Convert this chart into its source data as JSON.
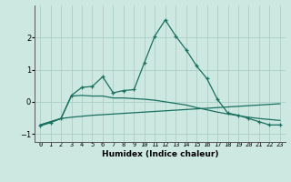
{
  "xlabel": "Humidex (Indice chaleur)",
  "background_color": "#cce8e0",
  "grid_color": "#aad0c8",
  "line_color": "#1a7060",
  "x_values": [
    0,
    1,
    2,
    3,
    4,
    5,
    6,
    7,
    8,
    9,
    10,
    11,
    12,
    13,
    14,
    15,
    16,
    17,
    18,
    19,
    20,
    21,
    22,
    23
  ],
  "series1": [
    -0.75,
    -0.65,
    -0.52,
    0.2,
    0.45,
    0.48,
    0.78,
    0.28,
    0.35,
    0.38,
    1.22,
    2.05,
    2.55,
    2.05,
    1.62,
    1.12,
    0.72,
    0.08,
    -0.35,
    -0.42,
    -0.52,
    -0.62,
    -0.72,
    -0.72
  ],
  "series2": [
    -0.72,
    -0.62,
    -0.52,
    0.18,
    0.2,
    0.18,
    0.18,
    0.12,
    0.12,
    0.1,
    0.08,
    0.05,
    0.0,
    -0.05,
    -0.1,
    -0.18,
    -0.25,
    -0.32,
    -0.38,
    -0.43,
    -0.48,
    -0.52,
    -0.55,
    -0.58
  ],
  "series3": [
    -0.72,
    -0.62,
    -0.52,
    -0.48,
    -0.45,
    -0.42,
    -0.4,
    -0.38,
    -0.36,
    -0.34,
    -0.32,
    -0.3,
    -0.28,
    -0.26,
    -0.24,
    -0.22,
    -0.2,
    -0.18,
    -0.16,
    -0.14,
    -0.12,
    -0.1,
    -0.08,
    -0.06
  ],
  "ylim": [
    -1.25,
    3.0
  ],
  "yticks": [
    -1,
    0,
    1,
    2
  ],
  "xtick_labels": [
    "0",
    "1",
    "2",
    "3",
    "4",
    "5",
    "6",
    "7",
    "8",
    "9",
    "10",
    "11",
    "12",
    "13",
    "14",
    "15",
    "16",
    "17",
    "18",
    "19",
    "20",
    "21",
    "22",
    "23"
  ]
}
